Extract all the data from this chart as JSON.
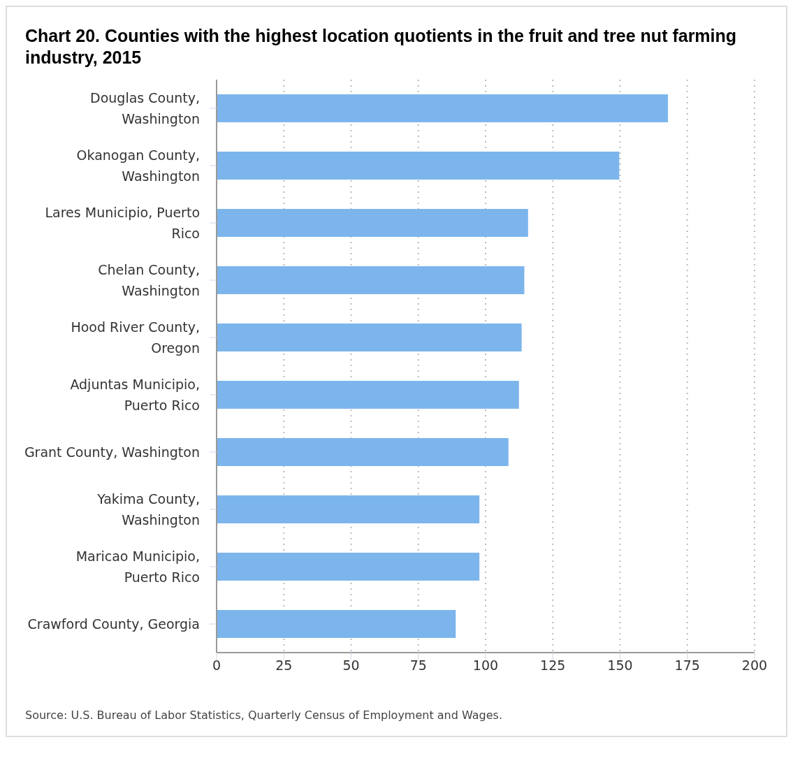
{
  "chart_data": {
    "type": "bar",
    "orientation": "horizontal",
    "title": "Chart 20. Counties with the highest location quotients in the fruit and tree nut farming industry, 2015",
    "categories": [
      "Douglas County, Washington",
      "Okanogan County, Washington",
      "Lares Municipio, Puerto Rico",
      "Chelan County, Washington",
      "Hood River County, Oregon",
      "Adjuntas Municipio, Puerto Rico",
      "Grant County, Washington",
      "Yakima County, Washington",
      "Maricao Municipio, Puerto Rico",
      "Crawford County, Georgia"
    ],
    "values": [
      167.8,
      149.7,
      115.8,
      114.4,
      113.4,
      112.4,
      108.5,
      97.7,
      97.7,
      88.9
    ],
    "color": "#7cb5ec",
    "xlim": [
      0,
      200
    ],
    "xticks": [
      0,
      25,
      50,
      75,
      100,
      125,
      150,
      175,
      200
    ],
    "grid": "x",
    "legend": false,
    "annotations": [
      "Source: U.S. Bureau of Labor Statistics, Quarterly Census of Employment and Wages."
    ]
  }
}
